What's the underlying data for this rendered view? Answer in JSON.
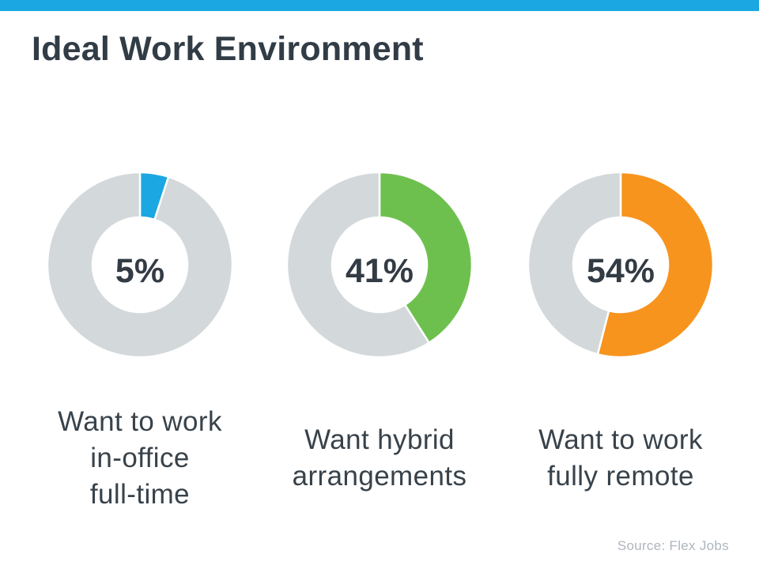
{
  "header": {
    "title": "Ideal Work Environment",
    "accent_bar_color": "#1ba7e2"
  },
  "footer": {
    "source": "Source: Flex Jobs"
  },
  "palette": {
    "blue": "#1ba7e2",
    "green": "#6ec04e",
    "orange": "#f7941e",
    "remainder_gray": "#d3d8da",
    "text_dark": "#333e48",
    "source_gray": "#aeb6bd"
  },
  "chart_data": [
    {
      "type": "pie",
      "donut": true,
      "start_angle_deg": 0,
      "direction": "clockwise",
      "center_label": "5%",
      "title": "Want to work\nin-office\nfull-time",
      "slices": [
        {
          "name": "Want to work in-office full-time",
          "value": 5,
          "color": "#1ba7e2"
        },
        {
          "name": "remainder",
          "value": 95,
          "color": "#d3d8da"
        }
      ]
    },
    {
      "type": "pie",
      "donut": true,
      "start_angle_deg": 0,
      "direction": "clockwise",
      "center_label": "41%",
      "title": "Want hybrid\narrangements",
      "slices": [
        {
          "name": "Want hybrid arrangements",
          "value": 41,
          "color": "#6ec04e"
        },
        {
          "name": "remainder",
          "value": 59,
          "color": "#d3d8da"
        }
      ]
    },
    {
      "type": "pie",
      "donut": true,
      "start_angle_deg": 0,
      "direction": "clockwise",
      "center_label": "54%",
      "title": "Want to work\nfully remote",
      "slices": [
        {
          "name": "Want to work fully remote",
          "value": 54,
          "color": "#f7941e"
        },
        {
          "name": "remainder",
          "value": 46,
          "color": "#d3d8da"
        }
      ]
    }
  ]
}
